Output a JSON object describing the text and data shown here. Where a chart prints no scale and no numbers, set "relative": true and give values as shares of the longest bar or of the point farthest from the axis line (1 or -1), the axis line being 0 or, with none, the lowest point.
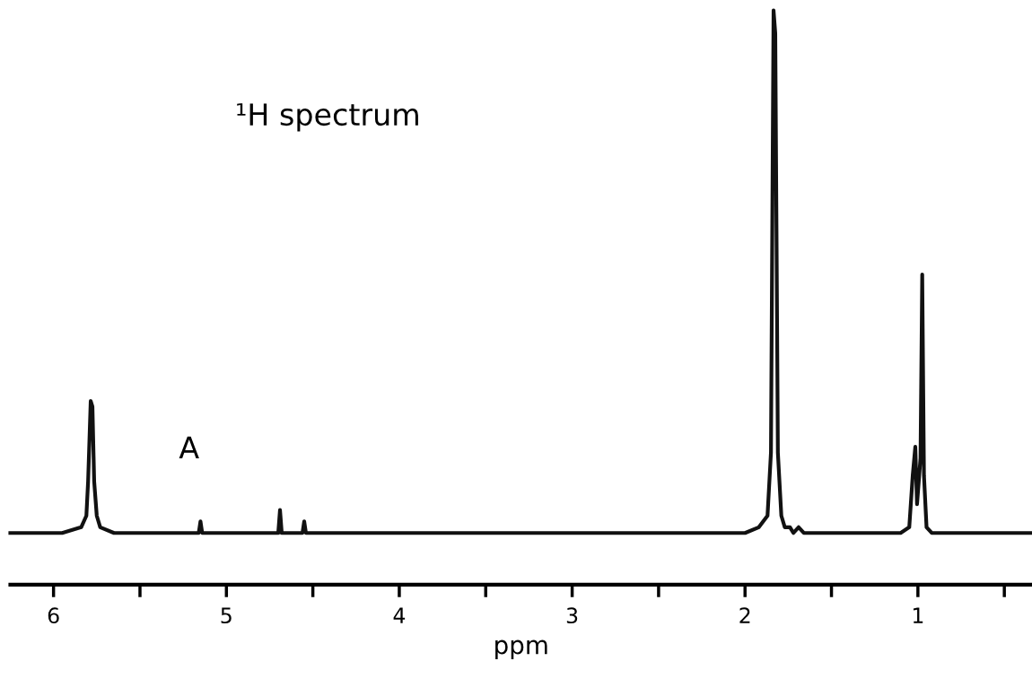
{
  "chart_data": {
    "type": "line",
    "relative": true,
    "xlabel": "ppm",
    "annotations": [
      "¹H spectrum",
      "A"
    ],
    "xlim": [
      6.25,
      0.34
    ],
    "xticks": [
      6,
      {
        "value": 5.5,
        "label": null
      },
      5,
      {
        "value": 4.5,
        "label": null
      },
      4,
      {
        "value": 3.5,
        "label": null
      },
      3,
      {
        "value": 2.5,
        "label": null
      },
      2,
      {
        "value": 1.5,
        "label": null
      },
      1,
      {
        "value": 0.5,
        "label": null
      }
    ],
    "tick_labels": "x",
    "grid": false,
    "legend": false,
    "series": [
      {
        "color": "#111111",
        "x": [
          6.25,
          5.95,
          5.84,
          5.81,
          5.8,
          5.785,
          5.775,
          5.765,
          5.75,
          5.73,
          5.65,
          5.16,
          5.15,
          5.14,
          4.7,
          4.69,
          4.68,
          4.56,
          4.55,
          4.54,
          2.0,
          1.92,
          1.87,
          1.85,
          1.835,
          1.825,
          1.81,
          1.79,
          1.77,
          1.74,
          1.72,
          1.69,
          1.66,
          1.1,
          1.05,
          1.03,
          1.015,
          1.005,
          0.985,
          0.975,
          0.965,
          0.95,
          0.92,
          0.34
        ],
        "values": [
          0.09,
          0.09,
          0.1,
          0.12,
          0.18,
          0.32,
          0.31,
          0.18,
          0.12,
          0.1,
          0.09,
          0.09,
          0.11,
          0.09,
          0.09,
          0.13,
          0.09,
          0.09,
          0.11,
          0.09,
          0.09,
          0.1,
          0.12,
          0.23,
          1.0,
          0.96,
          0.23,
          0.12,
          0.1,
          0.1,
          0.09,
          0.1,
          0.09,
          0.09,
          0.1,
          0.19,
          0.24,
          0.14,
          0.22,
          0.54,
          0.19,
          0.1,
          0.09,
          0.09
        ]
      }
    ]
  }
}
